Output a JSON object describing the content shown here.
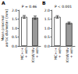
{
  "chart_data": [
    {
      "type": "bar",
      "title": "A",
      "ylabel": "Mean proximal aortic diameter (mm)",
      "categories": [
        "MC+/+ + veh",
        "KitW/Wv + veh"
      ],
      "values": [
        1.62,
        1.58
      ],
      "errors": [
        0.08,
        0.09
      ],
      "colors": [
        "#ffffff",
        "#999999"
      ],
      "annotations": [
        "P = 0.46"
      ],
      "ylim": [
        0,
        2
      ],
      "yticks": [
        {
          "value": 0,
          "label": "0.0"
        },
        {
          "value": 0.5,
          "label": "0.5"
        },
        {
          "value": 1,
          "label": "1.0"
        },
        {
          "value": 1.5,
          "label": "1.5"
        },
        {
          "value": 2,
          "label": "2.0"
        }
      ]
    },
    {
      "type": "bar",
      "title": "B",
      "categories": [
        "MC+/+ + veh",
        "KitW/Wv + veh"
      ],
      "values": [
        1.62,
        1.28
      ],
      "errors": [
        0.07,
        0.06
      ],
      "colors": [
        "#ffffff",
        "#999999"
      ],
      "annotations": [
        "P < 0.001"
      ],
      "ylim": [
        0,
        2
      ],
      "yticks": [
        {
          "value": 0,
          "label": "0.0"
        },
        {
          "value": 0.5,
          "label": "0.5"
        },
        {
          "value": 1,
          "label": "1.0"
        },
        {
          "value": 1.5,
          "label": "1.5"
        },
        {
          "value": 2,
          "label": "2.0"
        }
      ]
    }
  ]
}
